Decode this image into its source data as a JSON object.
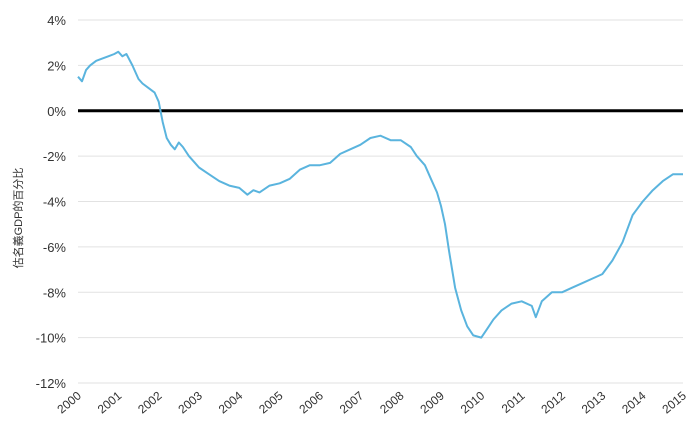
{
  "chart_data": {
    "type": "line",
    "title": "",
    "xlabel": "",
    "ylabel": "估名義GDP的百分比",
    "x_ticks": [
      "2000",
      "2001",
      "2002",
      "2003",
      "2004",
      "2005",
      "2006",
      "2007",
      "2008",
      "2009",
      "2010",
      "2011",
      "2012",
      "2013",
      "2014",
      "2015"
    ],
    "y_ticks": [
      "4%",
      "2%",
      "0%",
      "-2%",
      "-4%",
      "-6%",
      "-8%",
      "-10%",
      "-12%"
    ],
    "ylim": [
      -12,
      4
    ],
    "xlim": [
      2000,
      2015
    ],
    "grid": true,
    "reference_line_y": 0,
    "series": [
      {
        "color": "#5ab4de",
        "x": [
          2000.0,
          2000.1,
          2000.2,
          2000.3,
          2000.45,
          2000.6,
          2000.75,
          2000.9,
          2001.0,
          2001.1,
          2001.2,
          2001.35,
          2001.5,
          2001.6,
          2001.75,
          2001.9,
          2002.0,
          2002.1,
          2002.2,
          2002.3,
          2002.4,
          2002.5,
          2002.6,
          2002.75,
          2002.9,
          2003.0,
          2003.25,
          2003.5,
          2003.75,
          2004.0,
          2004.2,
          2004.35,
          2004.5,
          2004.75,
          2005.0,
          2005.25,
          2005.5,
          2005.75,
          2006.0,
          2006.25,
          2006.5,
          2006.75,
          2007.0,
          2007.25,
          2007.5,
          2007.75,
          2008.0,
          2008.25,
          2008.4,
          2008.6,
          2008.75,
          2008.9,
          2009.0,
          2009.1,
          2009.2,
          2009.35,
          2009.5,
          2009.65,
          2009.8,
          2010.0,
          2010.15,
          2010.3,
          2010.5,
          2010.75,
          2011.0,
          2011.25,
          2011.35,
          2011.5,
          2011.75,
          2012.0,
          2012.25,
          2012.5,
          2012.75,
          2013.0,
          2013.25,
          2013.5,
          2013.75,
          2014.0,
          2014.25,
          2014.5,
          2014.75,
          2015.0
        ],
        "y": [
          1.5,
          1.3,
          1.8,
          2.0,
          2.2,
          2.3,
          2.4,
          2.5,
          2.6,
          2.4,
          2.5,
          2.0,
          1.4,
          1.2,
          1.0,
          0.8,
          0.4,
          -0.5,
          -1.2,
          -1.5,
          -1.7,
          -1.4,
          -1.6,
          -2.0,
          -2.3,
          -2.5,
          -2.8,
          -3.1,
          -3.3,
          -3.4,
          -3.7,
          -3.5,
          -3.6,
          -3.3,
          -3.2,
          -3.0,
          -2.6,
          -2.4,
          -2.4,
          -2.3,
          -1.9,
          -1.7,
          -1.5,
          -1.2,
          -1.1,
          -1.3,
          -1.3,
          -1.6,
          -2.0,
          -2.4,
          -3.0,
          -3.6,
          -4.2,
          -5.0,
          -6.2,
          -7.8,
          -8.8,
          -9.5,
          -9.9,
          -10.0,
          -9.6,
          -9.2,
          -8.8,
          -8.5,
          -8.4,
          -8.6,
          -9.1,
          -8.4,
          -8.0,
          -8.0,
          -7.8,
          -7.6,
          -7.4,
          -7.2,
          -6.6,
          -5.8,
          -4.6,
          -4.0,
          -3.5,
          -3.1,
          -2.8,
          -2.8
        ]
      }
    ]
  }
}
